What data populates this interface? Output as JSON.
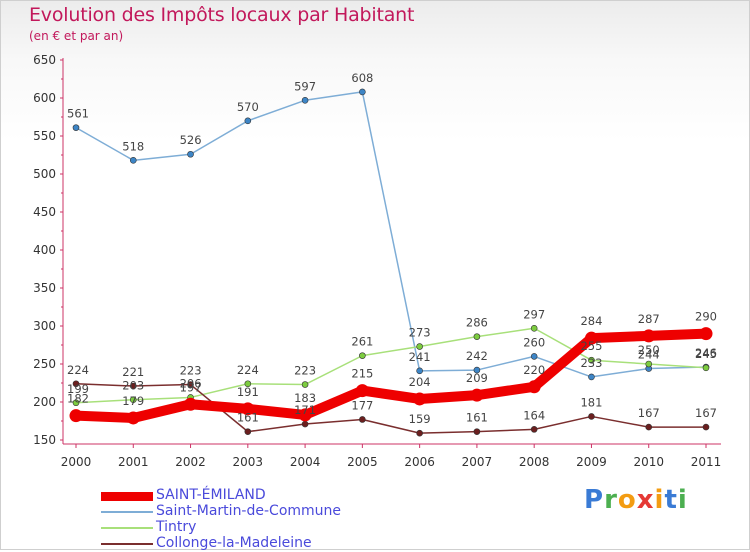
{
  "header": {
    "title": "Evolution des Impôts locaux par Habitant",
    "subtitle": "(en € et par an)"
  },
  "logo": {
    "text": "Proxiti",
    "letters": [
      "P",
      "r",
      "o",
      "x",
      "i",
      "t",
      "i"
    ],
    "letter_colors": [
      "#3a7bd5",
      "#4caf50",
      "#f39c12",
      "#e53935",
      "#f39c12",
      "#3a7bd5",
      "#4caf50"
    ]
  },
  "chart_data": {
    "type": "line",
    "title": "Evolution des Impôts locaux par Habitant",
    "subtitle": "(en € et par an)",
    "xlabel": "",
    "ylabel": "",
    "categories": [
      "2000",
      "2001",
      "2002",
      "2003",
      "2004",
      "2005",
      "2006",
      "2007",
      "2008",
      "2009",
      "2010",
      "2011"
    ],
    "ylim": [
      150,
      650
    ],
    "yticks": [
      150,
      200,
      250,
      300,
      350,
      400,
      450,
      500,
      550,
      600,
      650
    ],
    "grid": false,
    "legend_position": "bottom-left",
    "series": [
      {
        "name": "SAINT-ÉMILAND",
        "color": "#ee0000",
        "marker": "#ee0000",
        "label_color": "#444444",
        "thick": true,
        "values": [
          182,
          179,
          197,
          191,
          183,
          215,
          204,
          209,
          220,
          284,
          287,
          290
        ],
        "labels": [
          "182",
          "179",
          "197",
          "191",
          "183",
          "215",
          "204",
          "209",
          "220",
          "284",
          "287",
          "290"
        ]
      },
      {
        "name": "Saint-Martin-de-Commune",
        "color": "#7eadd6",
        "marker": "#3d85c6",
        "label_color": "#444444",
        "thick": false,
        "values": [
          561,
          518,
          526,
          570,
          597,
          608,
          241,
          242,
          260,
          233,
          244,
          246
        ],
        "labels": [
          "561",
          "518",
          "526",
          "570",
          "597",
          "608",
          "241",
          "242",
          "260",
          "233",
          "244",
          "246"
        ]
      },
      {
        "name": "Tintry",
        "color": "#a8e07a",
        "marker": "#7ccc3f",
        "label_color": "#444444",
        "thick": false,
        "values": [
          199,
          203,
          206,
          224,
          223,
          261,
          273,
          286,
          297,
          255,
          250,
          245
        ],
        "labels": [
          "199",
          "203",
          "206",
          "224",
          "223",
          "261",
          "273",
          "286",
          "297",
          "255",
          "250",
          "245"
        ]
      },
      {
        "name": "Collonge-la-Madeleine",
        "color": "#7a2e2e",
        "marker": "#6b1f1f",
        "label_color": "#444444",
        "thick": false,
        "values": [
          224,
          221,
          223,
          161,
          171,
          177,
          159,
          161,
          164,
          181,
          167,
          167
        ],
        "labels": [
          "224",
          "221",
          "223",
          "161",
          "171",
          "177",
          "159",
          "161",
          "164",
          "181",
          "167",
          "167"
        ]
      }
    ]
  }
}
